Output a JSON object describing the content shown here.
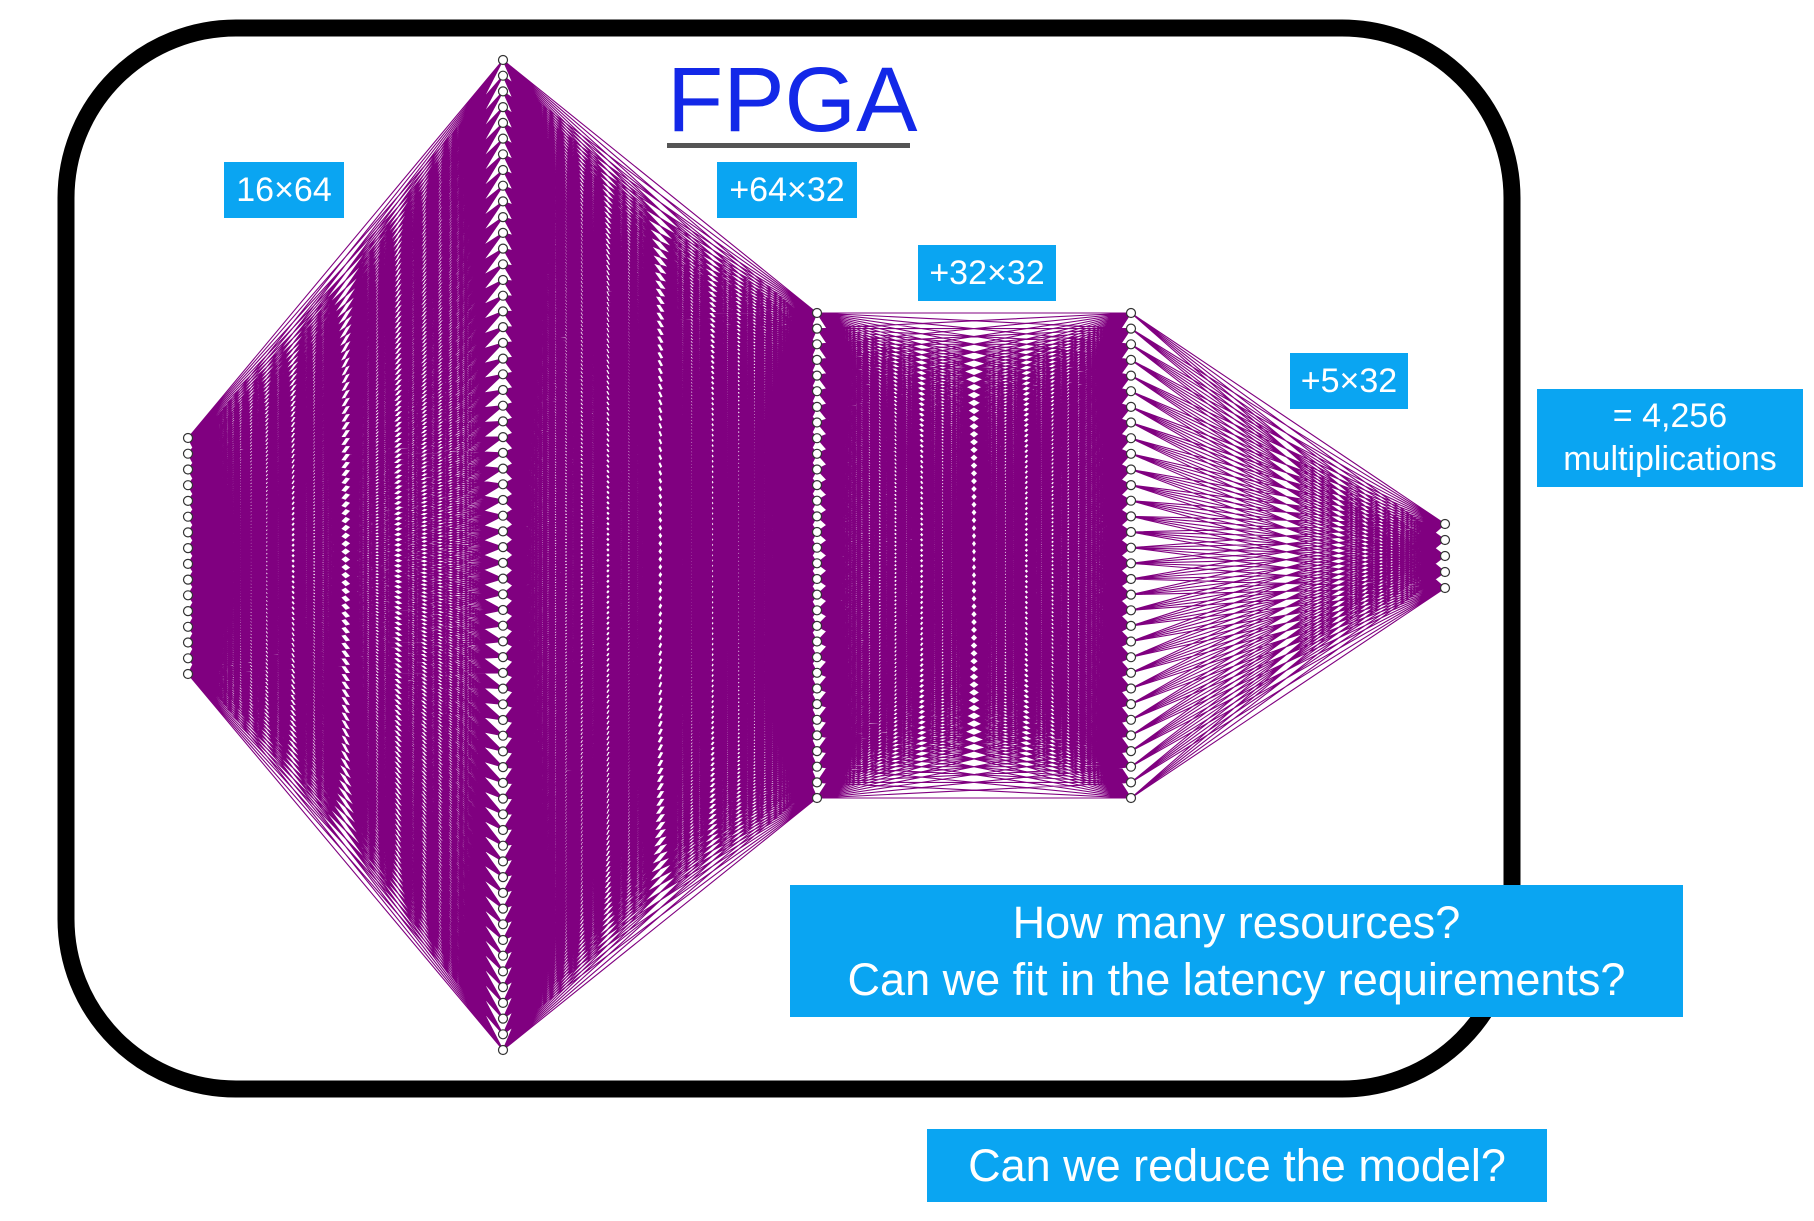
{
  "title": "FPGA",
  "labels": {
    "layer1": "16×64",
    "layer2": "+64×32",
    "layer3": "+32×32",
    "layer4": "+5×32",
    "total_line1": "= 4,256",
    "total_line2": "multiplications",
    "question1_line1": "How many resources?",
    "question1_line2": "Can we fit in the latency requirements?",
    "question2": "Can we reduce the model?"
  },
  "network": {
    "layer_sizes": [
      16,
      64,
      32,
      32,
      5
    ],
    "edge_color": "#800080",
    "node_fill": "#ffffff",
    "node_stroke": "#333333"
  },
  "colors": {
    "label_bg": "#0aa5f2",
    "label_text": "#ffffff",
    "title": "#1328e8",
    "frame": "#000000"
  }
}
